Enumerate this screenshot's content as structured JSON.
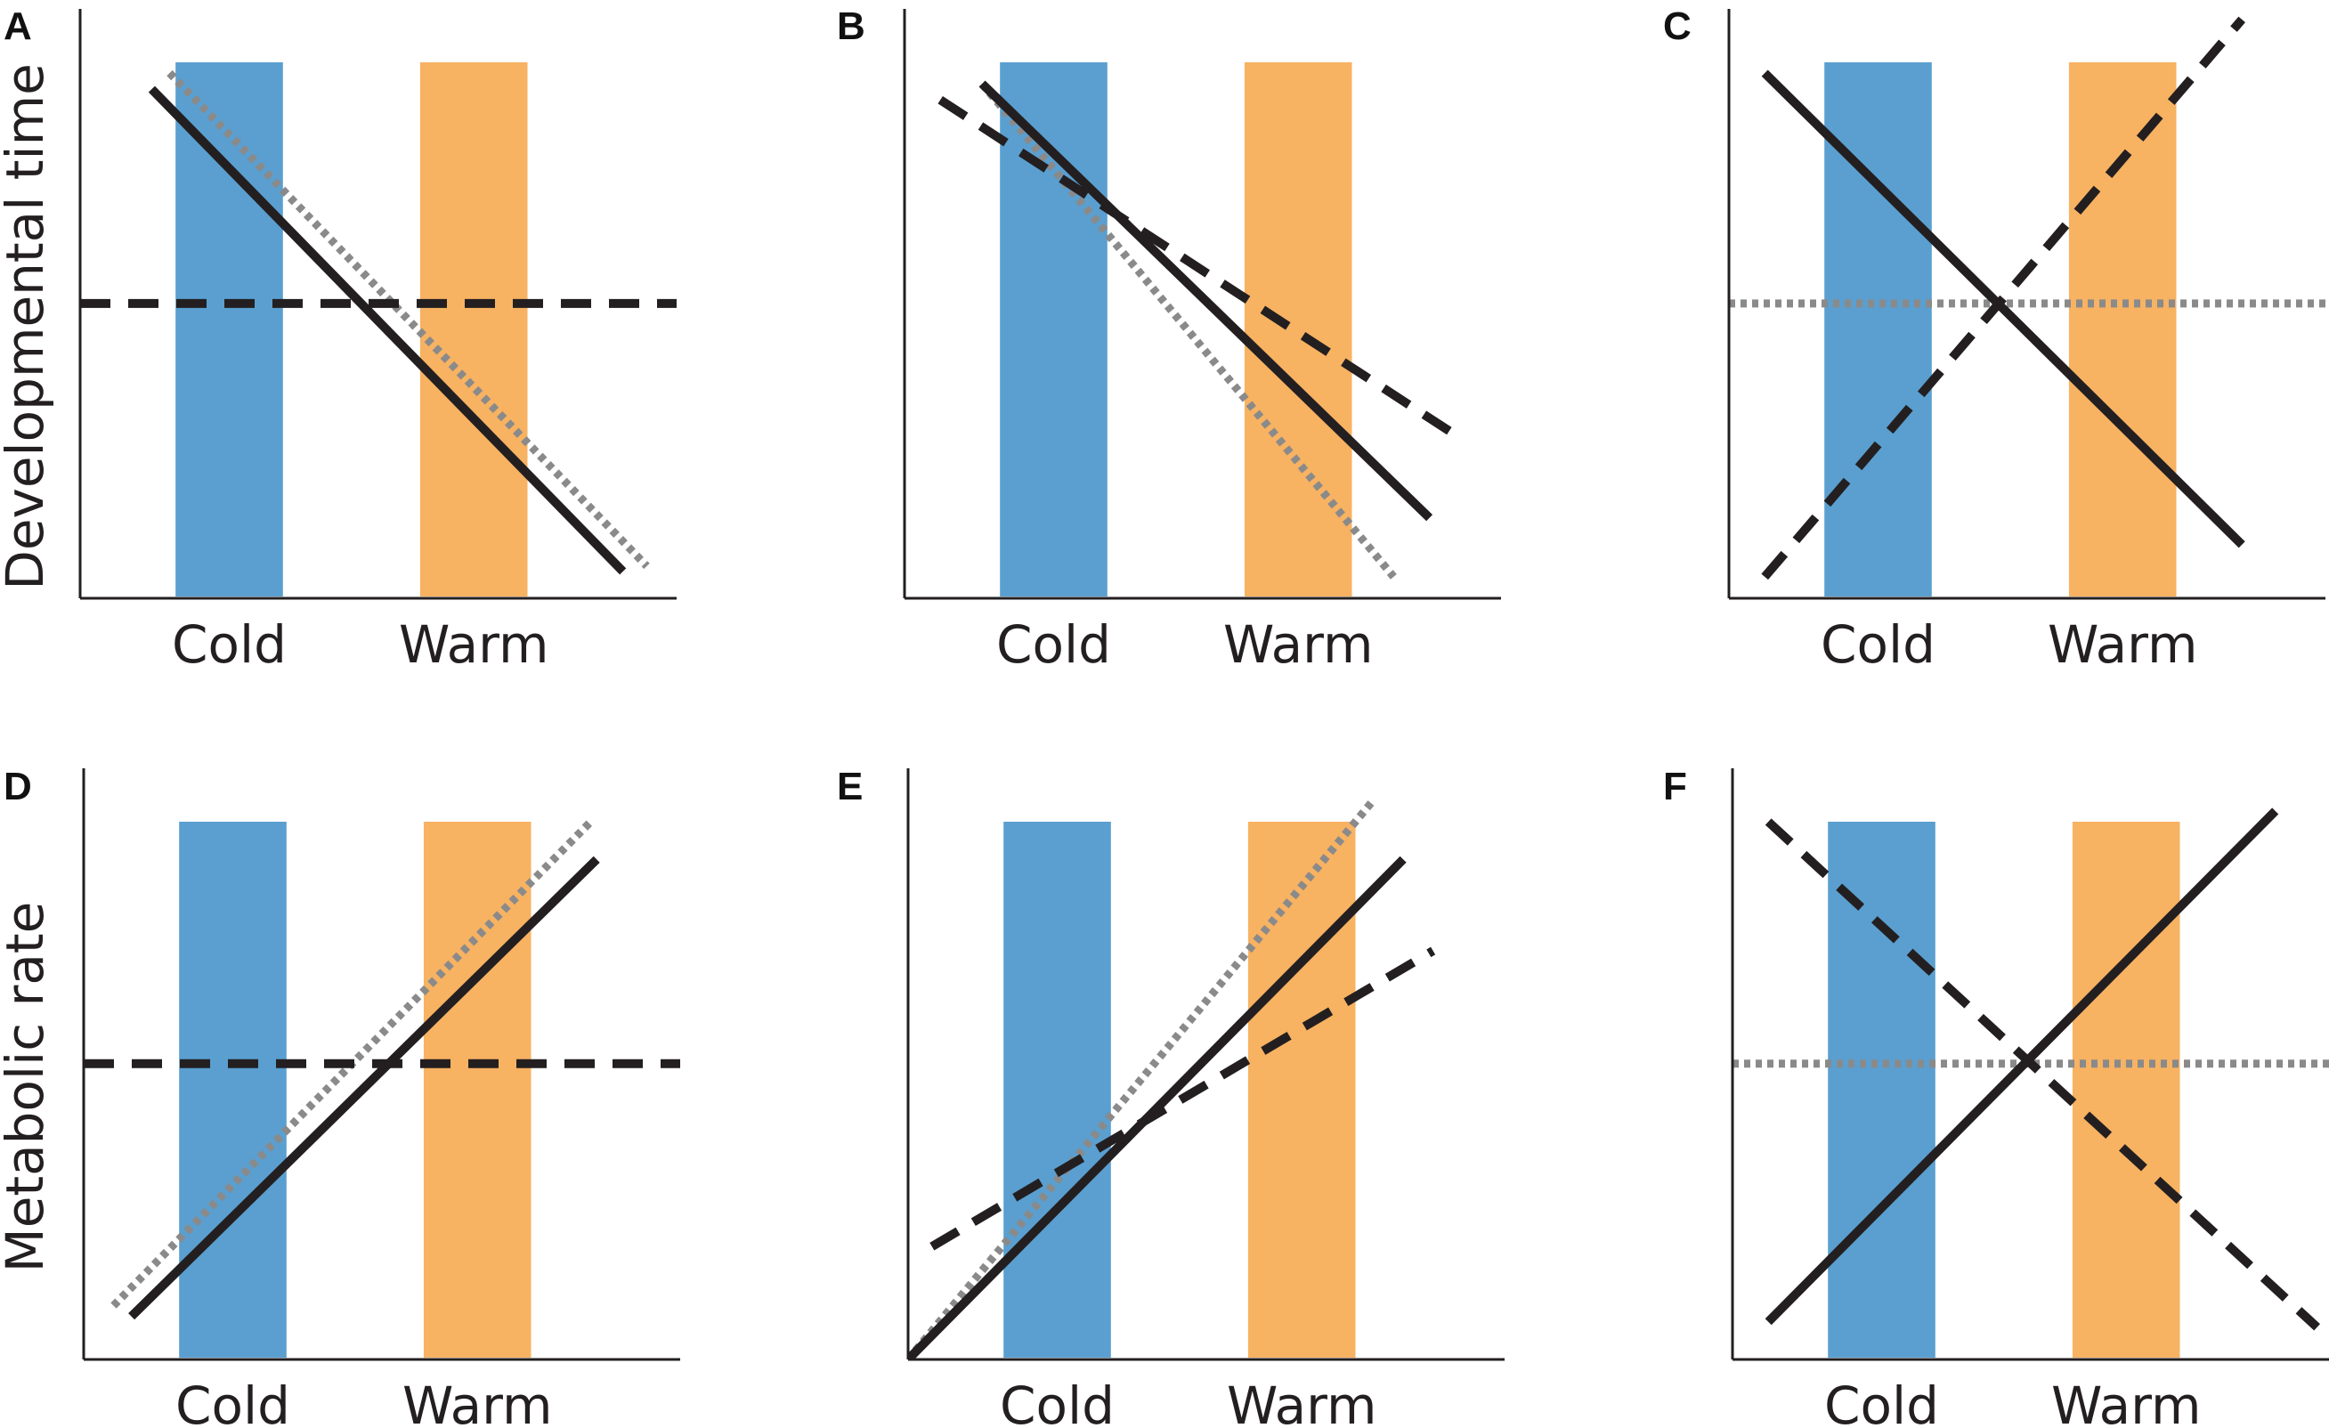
{
  "figure_title": "",
  "colors": {
    "cold_band": "#5a9fd0",
    "warm_band": "#f7b262",
    "line_solid": "#231f20",
    "line_dashed": "#231f20",
    "line_dotted": "#8a8a8a",
    "axis": "#231f20"
  },
  "chart_data": [
    {
      "id": "A",
      "type": "line",
      "panel_label": "A",
      "ylabel": "Developmental time",
      "xlabel": "",
      "categories": [
        "Cold",
        "Warm"
      ],
      "xlim": [
        0,
        10
      ],
      "ylim": [
        0,
        10
      ],
      "bands": [
        {
          "name": "Cold",
          "x0": 1.6,
          "x1": 3.4
        },
        {
          "name": "Warm",
          "x0": 5.7,
          "x1": 7.5
        }
      ],
      "series": [
        {
          "name": "solid",
          "style": "solid",
          "x": [
            1.2,
            9.1
          ],
          "y": [
            9.5,
            0.5
          ]
        },
        {
          "name": "dotted",
          "style": "dotted",
          "x": [
            1.5,
            9.5
          ],
          "y": [
            9.8,
            0.6
          ]
        },
        {
          "name": "dashed",
          "style": "dashed",
          "x": [
            0.0,
            10.0
          ],
          "y": [
            5.5,
            5.5
          ]
        }
      ]
    },
    {
      "id": "B",
      "type": "line",
      "panel_label": "B",
      "ylabel": "",
      "xlabel": "",
      "categories": [
        "Cold",
        "Warm"
      ],
      "xlim": [
        0,
        10
      ],
      "ylim": [
        0,
        10
      ],
      "bands": [
        {
          "name": "Cold",
          "x0": 1.6,
          "x1": 3.4
        },
        {
          "name": "Warm",
          "x0": 5.7,
          "x1": 7.5
        }
      ],
      "series": [
        {
          "name": "solid",
          "style": "solid",
          "x": [
            1.3,
            8.8
          ],
          "y": [
            9.6,
            1.5
          ]
        },
        {
          "name": "dotted",
          "style": "dotted",
          "x": [
            1.3,
            8.2
          ],
          "y": [
            9.6,
            0.4
          ]
        },
        {
          "name": "dashed",
          "style": "dashed",
          "x": [
            0.6,
            9.3
          ],
          "y": [
            9.3,
            3.0
          ]
        }
      ]
    },
    {
      "id": "C",
      "type": "line",
      "panel_label": "C",
      "ylabel": "",
      "xlabel": "",
      "categories": [
        "Cold",
        "Warm"
      ],
      "xlim": [
        0,
        10
      ],
      "ylim": [
        0,
        10
      ],
      "bands": [
        {
          "name": "Cold",
          "x0": 1.6,
          "x1": 3.4
        },
        {
          "name": "Warm",
          "x0": 5.7,
          "x1": 7.5
        }
      ],
      "series": [
        {
          "name": "solid",
          "style": "solid",
          "x": [
            0.6,
            8.6
          ],
          "y": [
            9.8,
            1.0
          ]
        },
        {
          "name": "dashed",
          "style": "dashed",
          "x": [
            0.6,
            8.6
          ],
          "y": [
            0.4,
            10.8
          ]
        },
        {
          "name": "dotted",
          "style": "dotted",
          "x": [
            0.0,
            10.0
          ],
          "y": [
            5.5,
            5.5
          ]
        }
      ]
    },
    {
      "id": "D",
      "type": "line",
      "panel_label": "D",
      "ylabel": "Metabolic rate",
      "xlabel": "",
      "categories": [
        "Cold",
        "Warm"
      ],
      "xlim": [
        0,
        10
      ],
      "ylim": [
        0,
        10
      ],
      "bands": [
        {
          "name": "Cold",
          "x0": 1.6,
          "x1": 3.4
        },
        {
          "name": "Warm",
          "x0": 5.7,
          "x1": 7.5
        }
      ],
      "series": [
        {
          "name": "solid",
          "style": "solid",
          "x": [
            0.8,
            8.6
          ],
          "y": [
            0.8,
            9.3
          ]
        },
        {
          "name": "dotted",
          "style": "dotted",
          "x": [
            0.5,
            8.5
          ],
          "y": [
            1.0,
            10.0
          ]
        },
        {
          "name": "dashed",
          "style": "dashed",
          "x": [
            0.0,
            10.0
          ],
          "y": [
            5.5,
            5.5
          ]
        }
      ]
    },
    {
      "id": "E",
      "type": "line",
      "panel_label": "E",
      "ylabel": "",
      "xlabel": "",
      "categories": [
        "Cold",
        "Warm"
      ],
      "xlim": [
        0,
        10
      ],
      "ylim": [
        0,
        10
      ],
      "bands": [
        {
          "name": "Cold",
          "x0": 1.6,
          "x1": 3.4
        },
        {
          "name": "Warm",
          "x0": 5.7,
          "x1": 7.5
        }
      ],
      "series": [
        {
          "name": "solid",
          "style": "solid",
          "x": [
            0.0,
            8.3
          ],
          "y": [
            0.0,
            9.3
          ]
        },
        {
          "name": "dotted",
          "style": "dotted",
          "x": [
            0.0,
            7.8
          ],
          "y": [
            0.0,
            10.4
          ]
        },
        {
          "name": "dashed",
          "style": "dashed",
          "x": [
            0.4,
            8.8
          ],
          "y": [
            2.1,
            7.6
          ]
        }
      ]
    },
    {
      "id": "F",
      "type": "line",
      "panel_label": "F",
      "ylabel": "",
      "xlabel": "",
      "categories": [
        "Cold",
        "Warm"
      ],
      "xlim": [
        0,
        10
      ],
      "ylim": [
        0,
        10
      ],
      "bands": [
        {
          "name": "Cold",
          "x0": 1.6,
          "x1": 3.4
        },
        {
          "name": "Warm",
          "x0": 5.7,
          "x1": 7.5
        }
      ],
      "series": [
        {
          "name": "solid",
          "style": "solid",
          "x": [
            0.6,
            9.1
          ],
          "y": [
            0.7,
            10.2
          ]
        },
        {
          "name": "dashed",
          "style": "dashed",
          "x": [
            0.6,
            9.8
          ],
          "y": [
            10.0,
            0.6
          ]
        },
        {
          "name": "dotted",
          "style": "dotted",
          "x": [
            0.0,
            10.0
          ],
          "y": [
            5.5,
            5.5
          ]
        }
      ]
    }
  ]
}
